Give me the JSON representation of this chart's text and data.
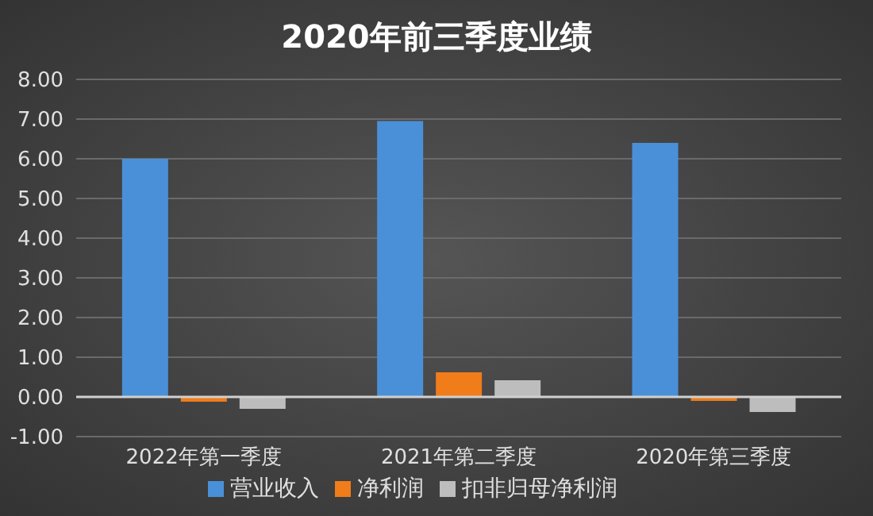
{
  "chart_data": {
    "type": "bar",
    "title": "2020年前三季度业绩",
    "categories": [
      "2022年第一季度",
      "2021年第二季度",
      "2020年第三季度"
    ],
    "series": [
      {
        "name": "营业收入",
        "color": "#4a90d9",
        "values": [
          6.0,
          6.95,
          6.4
        ]
      },
      {
        "name": "净利润",
        "color": "#f07c1a",
        "values": [
          -0.12,
          0.62,
          -0.1
        ]
      },
      {
        "name": "扣非归母净利润",
        "color": "#bdbdbd",
        "values": [
          -0.3,
          0.42,
          -0.38
        ]
      }
    ],
    "ylim": [
      -1,
      8
    ],
    "yticks": [
      {
        "value": -1,
        "label": "-1.00"
      },
      {
        "value": 0,
        "label": "0.00"
      },
      {
        "value": 1,
        "label": "1.00"
      },
      {
        "value": 2,
        "label": "2.00"
      },
      {
        "value": 3,
        "label": "3.00"
      },
      {
        "value": 4,
        "label": "4.00"
      },
      {
        "value": 5,
        "label": "5.00"
      },
      {
        "value": 6,
        "label": "6.00"
      },
      {
        "value": 7,
        "label": "7.00"
      },
      {
        "value": 8,
        "label": "8.00"
      }
    ],
    "grid": "y",
    "legend": "bottom"
  }
}
